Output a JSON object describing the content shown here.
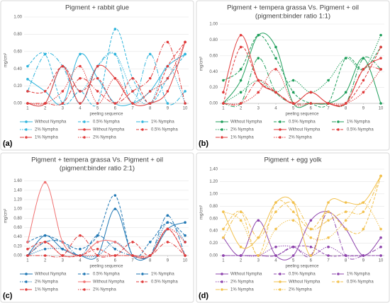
{
  "chart_data": [
    {
      "type": "line",
      "label": "(a)",
      "title": "Pigment + rabbit glue",
      "xlabel": "peeling sequence",
      "ylabel": "mg/cm²",
      "x": [
        1,
        2,
        3,
        4,
        5,
        6,
        7,
        8,
        9,
        10
      ],
      "xlim": [
        0.8,
        10.2
      ],
      "ylim": [
        0,
        1
      ],
      "yticks": [
        {
          "value": 0,
          "label": "0.00"
        },
        {
          "value": 0.2,
          "label": "0.20"
        },
        {
          "value": 0.4,
          "label": "0.40"
        },
        {
          "value": 0.6,
          "label": "0.60"
        },
        {
          "value": 0.8,
          "label": "0.80"
        },
        {
          "value": 1,
          "label": "1.00"
        }
      ],
      "grid": true,
      "series": [
        {
          "name": "Without Nympha",
          "color": "#2fb4dc",
          "dash": "solid",
          "values": [
            0.28,
            0.14,
            0,
            0.57,
            0.29,
            0,
            0,
            0.14,
            0.43,
            0.57
          ]
        },
        {
          "name": "0.5% Nympha",
          "color": "#2fb4dc",
          "dash": "dash",
          "values": [
            0.43,
            0.57,
            0,
            0.14,
            0,
            0.86,
            0.29,
            0,
            0.29,
            0.57
          ]
        },
        {
          "name": "1% Nympha",
          "color": "#2fb4dc",
          "dash": "dashdot",
          "values": [
            0.14,
            0.57,
            0.43,
            0,
            0.43,
            0.57,
            0,
            0.57,
            0,
            0.14
          ]
        },
        {
          "name": "2% Nympha",
          "color": "#2fb4dc",
          "dash": "dot",
          "values": [
            0,
            0,
            0.43,
            0.14,
            0.43,
            0.57,
            0.14,
            0,
            0.43,
            0
          ]
        },
        {
          "name": "Without Nympha",
          "color": "#e03a3a",
          "dash": "solid",
          "values": [
            0,
            0,
            0.43,
            0,
            0.43,
            0.29,
            0,
            0,
            0.14,
            0.71
          ]
        },
        {
          "name": "0.5% Nympha",
          "color": "#e03a3a",
          "dash": "dash",
          "values": [
            0.14,
            0.14,
            0.43,
            0.14,
            0.29,
            0,
            0.29,
            0,
            0.43,
            0.71
          ]
        },
        {
          "name": "1% Nympha",
          "color": "#e03a3a",
          "dash": "dashdot",
          "values": [
            0,
            0,
            0,
            0.29,
            0.14,
            0,
            0.14,
            0.29,
            0.71,
            0
          ]
        },
        {
          "name": "2% Nympha",
          "color": "#e03a3a",
          "dash": "dot",
          "values": [
            0,
            0,
            0.14,
            0.43,
            0,
            0.29,
            0,
            0.14,
            0.29,
            0.71
          ]
        }
      ]
    },
    {
      "type": "line",
      "label": "(b)",
      "title": "Pigment + tempera grassa Vs. Pigment + oil",
      "subtitle": "(pigment:binder ratio 1:1)",
      "xlabel": "peeling sequence",
      "ylabel": "mg/cm²",
      "x": [
        1,
        2,
        3,
        4,
        5,
        6,
        7,
        8,
        9,
        10
      ],
      "xlim": [
        0.8,
        10.2
      ],
      "ylim": [
        0,
        1
      ],
      "yticks": [
        {
          "value": 0,
          "label": "0.00"
        },
        {
          "value": 0.2,
          "label": "0.20"
        },
        {
          "value": 0.4,
          "label": "0.40"
        },
        {
          "value": 0.6,
          "label": "0.60"
        },
        {
          "value": 0.8,
          "label": "0.80"
        },
        {
          "value": 1,
          "label": "1.00"
        }
      ],
      "grid": true,
      "series": [
        {
          "name": "Without Nympha",
          "color": "#1e9e5a",
          "dash": "solid",
          "values": [
            0,
            0.29,
            0.86,
            0.71,
            0,
            0,
            0,
            0.14,
            0.57,
            0
          ]
        },
        {
          "name": "0.5% Nympha",
          "color": "#1e9e5a",
          "dash": "dash",
          "values": [
            0.29,
            0.43,
            0.86,
            0.57,
            0.14,
            0,
            0,
            0.57,
            0.43,
            0.71
          ]
        },
        {
          "name": "1% Nympha",
          "color": "#1e9e5a",
          "dash": "dashdot",
          "values": [
            0,
            0,
            0.57,
            0.14,
            0,
            0,
            0,
            0,
            0.57,
            0.43
          ]
        },
        {
          "name": "2% Nympha",
          "color": "#1e9e5a",
          "dash": "dot",
          "values": [
            0,
            0.14,
            0.29,
            0.14,
            0.29,
            0.14,
            0.29,
            0.57,
            0.43,
            0.86
          ]
        },
        {
          "name": "Without Nympha",
          "color": "#e03a3a",
          "dash": "solid",
          "values": [
            0.14,
            0.86,
            0.29,
            0.14,
            0,
            0.14,
            0,
            0,
            0.43,
            0.57
          ]
        },
        {
          "name": "0.5% Nympha",
          "color": "#e03a3a",
          "dash": "dash",
          "values": [
            0,
            0.71,
            0.29,
            0.14,
            0,
            0.14,
            0,
            0,
            0.29,
            0.71
          ]
        },
        {
          "name": "1% Nympha",
          "color": "#e03a3a",
          "dash": "dashdot",
          "values": [
            0,
            0,
            0.29,
            0.14,
            0,
            0,
            0,
            0,
            0.43,
            0.43
          ]
        },
        {
          "name": "2% Nympha",
          "color": "#e03a3a",
          "dash": "dot",
          "values": [
            0,
            0,
            0.14,
            0.43,
            0,
            0,
            0,
            0,
            0.14,
            0.43
          ]
        }
      ]
    },
    {
      "type": "line",
      "label": "(c)",
      "title": "Pigment + tempera grassa Vs. Pigment + oil",
      "subtitle": "(pigment:binder ratio 2:1)",
      "xlabel": "peeling sequence",
      "ylabel": "mg/cm²",
      "x": [
        1,
        2,
        3,
        4,
        5,
        6,
        7,
        8,
        9,
        10
      ],
      "xlim": [
        0.8,
        10.2
      ],
      "ylim": [
        0,
        1.7
      ],
      "yticks": [
        {
          "value": 0,
          "label": "0.00"
        },
        {
          "value": 0.2,
          "label": "0.20"
        },
        {
          "value": 0.4,
          "label": "0.40"
        },
        {
          "value": 0.6,
          "label": "0.60"
        },
        {
          "value": 0.8,
          "label": "0.80"
        },
        {
          "value": 1,
          "label": "1.00"
        },
        {
          "value": 1.2,
          "label": "1.20"
        },
        {
          "value": 1.4,
          "label": "1.40"
        },
        {
          "value": 1.6,
          "label": "1.60"
        }
      ],
      "grid": true,
      "series": [
        {
          "name": "Without Nympha",
          "color": "#1f77b4",
          "dash": "solid",
          "values": [
            0,
            0.43,
            0.14,
            0,
            0,
            1.0,
            0,
            0,
            0.57,
            0.71
          ]
        },
        {
          "name": "0.5% Nympha",
          "color": "#1f77b4",
          "dash": "dash",
          "values": [
            0.29,
            0.43,
            0.29,
            0.14,
            0.43,
            1.29,
            0,
            0.29,
            0.71,
            0.43
          ]
        },
        {
          "name": "1% Nympha",
          "color": "#1f77b4",
          "dash": "dashdot",
          "values": [
            0,
            0.29,
            0.29,
            0,
            0.43,
            0.14,
            0,
            0,
            0.86,
            0
          ]
        },
        {
          "name": "2% Nympha",
          "color": "#1f77b4",
          "dash": "dot",
          "values": [
            0,
            0.14,
            0.14,
            0,
            0,
            0.29,
            0,
            0,
            0.71,
            0.29
          ]
        },
        {
          "name": "Without Nympha",
          "color": "#f07070",
          "dash": "solid",
          "values": [
            0.29,
            1.57,
            0.29,
            0,
            0.29,
            0.29,
            0,
            0,
            0.57,
            0
          ]
        },
        {
          "name": "0.5% Nympha",
          "color": "#e03a3a",
          "dash": "dash",
          "values": [
            0.14,
            0.29,
            0,
            0,
            0.14,
            0,
            0.29,
            0,
            0.57,
            0
          ]
        },
        {
          "name": "1% Nympha",
          "color": "#e03a3a",
          "dash": "dashdot",
          "values": [
            0,
            0,
            0,
            0.43,
            0,
            0,
            0,
            0,
            0.29,
            0
          ]
        },
        {
          "name": "2% Nympha",
          "color": "#e03a3a",
          "dash": "dot",
          "values": [
            0,
            0.29,
            0,
            0,
            0,
            0,
            0,
            0,
            0.57,
            0.29
          ]
        }
      ]
    },
    {
      "type": "line",
      "label": "(d)",
      "title": "Pigment + egg yolk",
      "xlabel": "peeling sequence",
      "ylabel": "mg/cm²",
      "x": [
        1,
        2,
        3,
        4,
        5,
        6,
        7,
        8,
        9,
        10
      ],
      "xlim": [
        0.8,
        10.2
      ],
      "ylim": [
        0,
        1.4
      ],
      "yticks": [
        {
          "value": 0,
          "label": "0.00"
        },
        {
          "value": 0.2,
          "label": "0.20"
        },
        {
          "value": 0.4,
          "label": "0.40"
        },
        {
          "value": 0.6,
          "label": "0.60"
        },
        {
          "value": 0.8,
          "label": "0.80"
        },
        {
          "value": 1,
          "label": "1.00"
        },
        {
          "value": 1.2,
          "label": "1.20"
        },
        {
          "value": 1.4,
          "label": "1.40"
        }
      ],
      "grid": true,
      "series": [
        {
          "name": "Without Nympha",
          "color": "#8e44ad",
          "dash": "solid",
          "values": [
            0.29,
            0,
            0.57,
            0,
            0,
            0.57,
            0.71,
            0.43,
            0,
            0.29
          ]
        },
        {
          "name": "0.5% Nympha",
          "color": "#8e44ad",
          "dash": "dash",
          "values": [
            0,
            0,
            0,
            0,
            0.14,
            0.14,
            0,
            0,
            0,
            0
          ]
        },
        {
          "name": "1% Nympha",
          "color": "#8e44ad",
          "dash": "dashdot",
          "values": [
            0,
            0,
            0,
            0,
            0.14,
            0,
            0.71,
            0,
            0,
            0.14
          ]
        },
        {
          "name": "2% Nympha",
          "color": "#8e44ad",
          "dash": "dot",
          "values": [
            0,
            0,
            0,
            0.14,
            0.14,
            0,
            0.14,
            0,
            0,
            0
          ]
        },
        {
          "name": "Without Nympha",
          "color": "#f2c14e",
          "dash": "solid",
          "values": [
            0.71,
            0.14,
            0.29,
            0.86,
            0.86,
            0,
            0.86,
            0.86,
            0.86,
            1.29
          ]
        },
        {
          "name": "0.5% Nympha",
          "color": "#f2c14e",
          "dash": "dash",
          "values": [
            0.43,
            0.71,
            0,
            0.86,
            0.71,
            0.43,
            0.71,
            0.43,
            0.43,
            1.29
          ]
        },
        {
          "name": "1% Nympha",
          "color": "#f2c14e",
          "dash": "dashdot",
          "values": [
            0.29,
            0.71,
            0.29,
            0.71,
            0.86,
            0.43,
            0.57,
            0.71,
            0.71,
            1.29
          ]
        },
        {
          "name": "2% Nympha",
          "color": "#f2c14e",
          "dash": "dot",
          "values": [
            0.71,
            0.57,
            0,
            0.43,
            0.57,
            0.29,
            0.29,
            0.57,
            0.86,
            0.43
          ]
        }
      ]
    }
  ]
}
